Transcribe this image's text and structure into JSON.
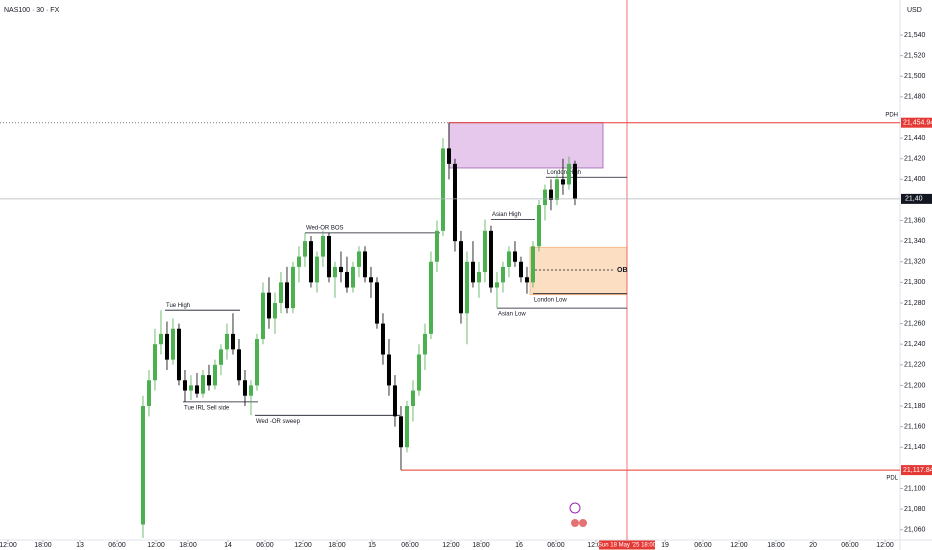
{
  "chart_data": {
    "type": "candlestick",
    "title": "NAS100 · 30 · FX",
    "currency": "USD",
    "up_color": "#4caf50",
    "down_color": "#000000",
    "open": [
      21065,
      21180,
      21205,
      21240,
      21250,
      21225,
      21255,
      21205,
      21195,
      21200,
      21192,
      21210,
      21200,
      21220,
      21235,
      21250,
      21235,
      21205,
      21190,
      21200,
      21245,
      21290,
      21265,
      21280,
      21300,
      21275,
      21315,
      21325,
      21340,
      21300,
      21325,
      21345,
      21305,
      21315,
      21310,
      21295,
      21315,
      21330,
      21305,
      21300,
      21260,
      21230,
      21200,
      21170,
      21140,
      21180,
      21195,
      21230,
      21250,
      21320,
      21350,
      21430,
      21415,
      21340,
      21270,
      21320,
      21300,
      21310,
      21350,
      21295,
      21300,
      21315,
      21330,
      21320,
      21305,
      21300,
      21335,
      21375,
      21390,
      21380,
      21400,
      21395,
      21415
    ],
    "high": [
      21190,
      21215,
      21255,
      21273,
      21262,
      21265,
      21260,
      21215,
      21210,
      21212,
      21215,
      21220,
      21225,
      21240,
      21260,
      21270,
      21245,
      21215,
      21205,
      21250,
      21300,
      21305,
      21290,
      21310,
      21315,
      21320,
      21335,
      21348,
      21345,
      21330,
      21350,
      21348,
      21320,
      21330,
      21325,
      21320,
      21335,
      21335,
      21315,
      21305,
      21270,
      21245,
      21210,
      21180,
      21185,
      21205,
      21240,
      21260,
      21330,
      21360,
      21440,
      21455,
      21420,
      21350,
      21330,
      21340,
      21320,
      21361,
      21355,
      21310,
      21320,
      21335,
      21340,
      21325,
      21315,
      21340,
      21380,
      21395,
      21400,
      21405,
      21420,
      21422,
      21418
    ],
    "low": [
      21052,
      21170,
      21195,
      21230,
      21215,
      21220,
      21200,
      21184,
      21186,
      21188,
      21188,
      21195,
      21196,
      21210,
      21225,
      21230,
      21200,
      21180,
      21171,
      21195,
      21240,
      21255,
      21250,
      21270,
      21270,
      21270,
      21300,
      21315,
      21295,
      21290,
      21315,
      21300,
      21285,
      21300,
      21290,
      21290,
      21305,
      21300,
      21285,
      21255,
      21220,
      21190,
      21160,
      21118,
      21135,
      21165,
      21190,
      21215,
      21245,
      21310,
      21345,
      21400,
      21330,
      21260,
      21240,
      21295,
      21285,
      21300,
      21290,
      21275,
      21290,
      21305,
      21315,
      21300,
      21289,
      21295,
      21330,
      21360,
      21370,
      21375,
      21385,
      21390,
      21375
    ],
    "close": [
      21180,
      21205,
      21240,
      21250,
      21225,
      21255,
      21205,
      21195,
      21200,
      21192,
      21210,
      21200,
      21220,
      21235,
      21250,
      21235,
      21205,
      21190,
      21200,
      21245,
      21290,
      21265,
      21280,
      21300,
      21275,
      21315,
      21325,
      21340,
      21300,
      21325,
      21345,
      21305,
      21315,
      21310,
      21295,
      21315,
      21330,
      21305,
      21300,
      21260,
      21230,
      21200,
      21170,
      21140,
      21180,
      21195,
      21230,
      21250,
      21320,
      21350,
      21430,
      21415,
      21340,
      21270,
      21320,
      21300,
      21310,
      21350,
      21295,
      21300,
      21315,
      21330,
      21320,
      21305,
      21300,
      21335,
      21375,
      21390,
      21380,
      21400,
      21395,
      21415,
      21381
    ],
    "xlim": [
      -23.83,
      126.17
    ],
    "ylim": [
      21050,
      21574
    ],
    "xticks": [
      {
        "value": -22.5,
        "label": "12:00"
      },
      {
        "value": -16.67,
        "label": "18:00"
      },
      {
        "value": -10.5,
        "label": "13"
      },
      {
        "value": -4.33,
        "label": "06:00"
      },
      {
        "value": 2.17,
        "label": "12:00"
      },
      {
        "value": 7.5,
        "label": "18:00"
      },
      {
        "value": 14.17,
        "label": "14"
      },
      {
        "value": 20.33,
        "label": "06:00"
      },
      {
        "value": 26.67,
        "label": "12:00"
      },
      {
        "value": 32.33,
        "label": "18:00"
      },
      {
        "value": 38.17,
        "label": "15"
      },
      {
        "value": 44.5,
        "label": "06:00"
      },
      {
        "value": 51.33,
        "label": "12:00"
      },
      {
        "value": 56.33,
        "label": "18:00"
      },
      {
        "value": 62.67,
        "label": "16"
      },
      {
        "value": 68.83,
        "label": "06:00"
      },
      {
        "value": 75.5,
        "label": "12:00"
      },
      {
        "value": 87,
        "label": "19"
      },
      {
        "value": 93.33,
        "label": "06:00"
      },
      {
        "value": 99.33,
        "label": "12:00"
      },
      {
        "value": 105.5,
        "label": "18:00"
      },
      {
        "value": 111.67,
        "label": "20"
      },
      {
        "value": 117.83,
        "label": "06:00"
      },
      {
        "value": 123.67,
        "label": "12:00"
      }
    ],
    "yticks": [
      {
        "value": 21060,
        "label": "21,060"
      },
      {
        "value": 21080,
        "label": "21,080"
      },
      {
        "value": 21100,
        "label": "21,100"
      },
      {
        "value": 21140,
        "label": "21,140"
      },
      {
        "value": 21160,
        "label": "21,160"
      },
      {
        "value": 21180,
        "label": "21,180"
      },
      {
        "value": 21200,
        "label": "21,200"
      },
      {
        "value": 21220,
        "label": "21,220"
      },
      {
        "value": 21240,
        "label": "21,240"
      },
      {
        "value": 21260,
        "label": "21,260"
      },
      {
        "value": 21280,
        "label": "21,280"
      },
      {
        "value": 21300,
        "label": "21,300"
      },
      {
        "value": 21320,
        "label": "21,320"
      },
      {
        "value": 21340,
        "label": "21,340"
      },
      {
        "value": 21360,
        "label": "21,360"
      },
      {
        "value": 21400,
        "label": "21,400"
      },
      {
        "value": 21420,
        "label": "21,420"
      },
      {
        "value": 21440,
        "label": "21,440"
      },
      {
        "value": 21480,
        "label": "21,480"
      },
      {
        "value": 21500,
        "label": "21,500"
      },
      {
        "value": 21520,
        "label": "21,520"
      },
      {
        "value": 21540,
        "label": "21,540"
      }
    ],
    "crosshair": {
      "value": 80.67,
      "label": "Sun 18 May '25   18:00"
    },
    "price_tag": "21,40",
    "zones": [
      {
        "top": 21455,
        "bottom": 21411,
        "x": [
          51,
          76.67
        ],
        "color": "#e1bee7",
        "border": "#9c5fb0"
      },
      {
        "top": 21334,
        "bottom": 21288,
        "x": [
          64.5,
          80.67
        ],
        "color": "#fcd9b8",
        "border": "#f5b482"
      }
    ],
    "levels": [
      {
        "name": "Tue High",
        "value": 21273,
        "x": [
          3.67,
          16.17
        ],
        "label_side": "above"
      },
      {
        "name": "Tue IRL Sell side",
        "value": 21184,
        "x": [
          6.67,
          19.17
        ],
        "label_side": "below"
      },
      {
        "name": "Wed-OR BOS",
        "value": 21348,
        "x": [
          27,
          49.5
        ],
        "label_side": "above"
      },
      {
        "name": "Wed -OR sweep",
        "value": 21171,
        "x": [
          18.67,
          42.83
        ],
        "label_side": "below"
      },
      {
        "name": "Asian High",
        "value": 21361,
        "x": [
          58,
          65.33
        ],
        "label_side": "above"
      },
      {
        "name": "Asian Low",
        "value": 21275,
        "x": [
          59,
          80.67
        ],
        "label_side": "below"
      },
      {
        "name": "London Low",
        "value": 21289,
        "x": [
          65,
          80.67
        ],
        "label_side": "below"
      },
      {
        "name": "London High",
        "value": 21402,
        "x": [
          67.17,
          80.67
        ],
        "label_side": "above"
      }
    ],
    "ob": {
      "name": "OB",
      "value": 21312,
      "x": [
        65.33,
        78.67
      ]
    },
    "reference_lines": [
      {
        "name": "PDH",
        "value": 21454.94,
        "label": "21,454.94",
        "start": 51
      },
      {
        "name": "PDL",
        "value": 21117.84,
        "label": "21,117.84",
        "start": 43
      }
    ]
  }
}
